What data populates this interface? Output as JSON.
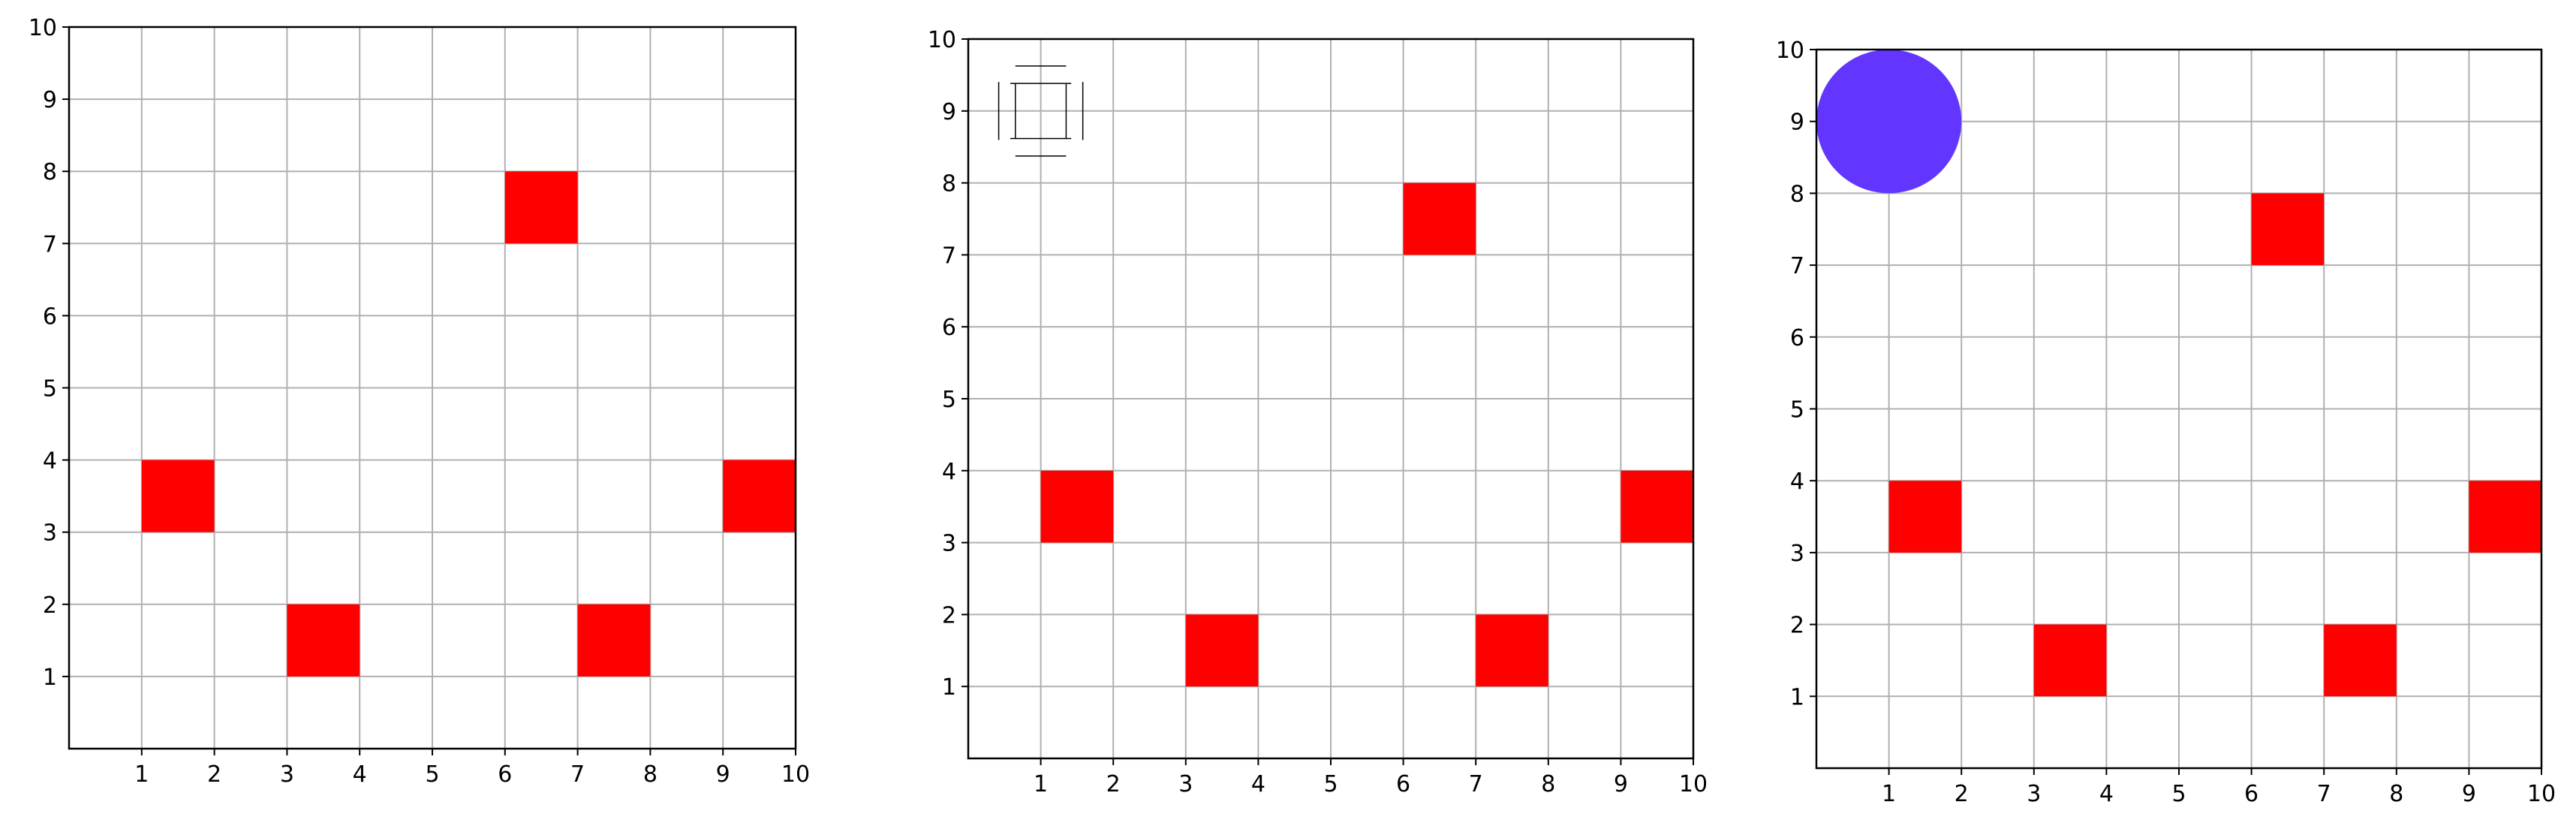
{
  "colors": {
    "background": "#ffffff",
    "grid": "#b0b0b0",
    "axes": "#000000",
    "obstacle": "#ff0000",
    "player": "#6236ff",
    "target_outline": "#000000"
  },
  "chart_data": [
    {
      "type": "scatter",
      "panel": "left",
      "xlim": [
        0,
        10
      ],
      "ylim": [
        0,
        10
      ],
      "xticks": [
        "1",
        "2",
        "3",
        "4",
        "5",
        "6",
        "7",
        "8",
        "9",
        "10"
      ],
      "yticks": [
        "1",
        "2",
        "3",
        "4",
        "5",
        "6",
        "7",
        "8",
        "9",
        "10"
      ],
      "grid": true,
      "obstacles": [
        {
          "x": [
            1,
            2
          ],
          "y": [
            3,
            4
          ]
        },
        {
          "x": [
            3,
            4
          ],
          "y": [
            1,
            2
          ]
        },
        {
          "x": [
            6,
            7
          ],
          "y": [
            7,
            8
          ]
        },
        {
          "x": [
            7,
            8
          ],
          "y": [
            1,
            2
          ]
        },
        {
          "x": [
            9,
            10
          ],
          "y": [
            3,
            4
          ]
        }
      ],
      "player": null,
      "target": null
    },
    {
      "type": "scatter",
      "panel": "middle",
      "xlim": [
        0,
        10
      ],
      "ylim": [
        0,
        10
      ],
      "xticks": [
        "1",
        "2",
        "3",
        "4",
        "5",
        "6",
        "7",
        "8",
        "9",
        "10"
      ],
      "yticks": [
        "1",
        "2",
        "3",
        "4",
        "5",
        "6",
        "7",
        "8",
        "9",
        "10"
      ],
      "grid": true,
      "obstacles": [
        {
          "x": [
            1,
            2
          ],
          "y": [
            3,
            4
          ]
        },
        {
          "x": [
            3,
            4
          ],
          "y": [
            1,
            2
          ]
        },
        {
          "x": [
            6,
            7
          ],
          "y": [
            7,
            8
          ]
        },
        {
          "x": [
            7,
            8
          ],
          "y": [
            1,
            2
          ]
        },
        {
          "x": [
            9,
            10
          ],
          "y": [
            3,
            4
          ]
        }
      ],
      "player": null,
      "target": {
        "x": 1,
        "y": 9,
        "marker": "dashed-outline-square"
      }
    },
    {
      "type": "scatter",
      "panel": "right",
      "xlim": [
        0,
        10
      ],
      "ylim": [
        0,
        10
      ],
      "xticks": [
        "1",
        "2",
        "3",
        "4",
        "5",
        "6",
        "7",
        "8",
        "9",
        "10"
      ],
      "yticks": [
        "1",
        "2",
        "3",
        "4",
        "5",
        "6",
        "7",
        "8",
        "9",
        "10"
      ],
      "grid": true,
      "obstacles": [
        {
          "x": [
            1,
            2
          ],
          "y": [
            3,
            4
          ]
        },
        {
          "x": [
            3,
            4
          ],
          "y": [
            1,
            2
          ]
        },
        {
          "x": [
            6,
            7
          ],
          "y": [
            7,
            8
          ]
        },
        {
          "x": [
            7,
            8
          ],
          "y": [
            1,
            2
          ]
        },
        {
          "x": [
            9,
            10
          ],
          "y": [
            3,
            4
          ]
        }
      ],
      "player": {
        "x": 1,
        "y": 9,
        "radius": 1
      },
      "target": null
    }
  ]
}
